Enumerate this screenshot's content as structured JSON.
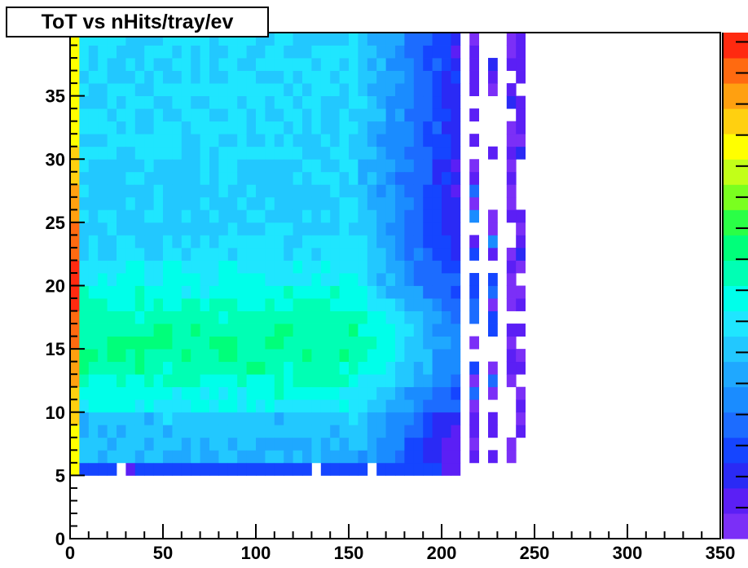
{
  "chart_data": {
    "type": "heatmap",
    "title": "ToT vs nHits/tray/ev",
    "xlabel": "",
    "ylabel": "",
    "xlim": [
      0,
      350
    ],
    "ylim": [
      0,
      40
    ],
    "bin_width_x": 5,
    "bin_width_y": 1,
    "x_ticks": [
      0,
      50,
      100,
      150,
      200,
      250,
      300,
      350
    ],
    "y_ticks": [
      0,
      5,
      10,
      15,
      20,
      25,
      30,
      35
    ],
    "y_tick_labels": [
      "0",
      "5",
      "10",
      "15",
      "20",
      "25",
      "30",
      "35"
    ],
    "palette": [
      "#7b2ff7",
      "#5b1ff5",
      "#2a2af5",
      "#1545ff",
      "#1c6cff",
      "#1a8cff",
      "#1fa8ff",
      "#22c8ff",
      "#1fe6ff",
      "#00ffea",
      "#00ffb4",
      "#00ff7a",
      "#2aff46",
      "#7aff1f",
      "#c2ff18",
      "#ffff00",
      "#ffd010",
      "#ffa010",
      "#ff6a10",
      "#ff2a10"
    ],
    "color_scale_description": "rainbow palette, violet (low) to red (high)",
    "ridge": {
      "y_peak_center": 15.5,
      "y_peak_width": 2.2,
      "x_falloff_start": 150,
      "x_edge": 205
    },
    "left_edge_column": {
      "x": [
        0,
        5
      ],
      "y_range": [
        5,
        40
      ],
      "peak_y": 20,
      "color_at_peak": "#ff2a10",
      "color_at_ends": "#ffff00"
    },
    "lower_boundary_y": 6,
    "sparse_columns_x": [
      205,
      215,
      225,
      235,
      240
    ],
    "z_ticks_count": 16,
    "grid": false,
    "legend": "none (color scale bar at right)"
  }
}
